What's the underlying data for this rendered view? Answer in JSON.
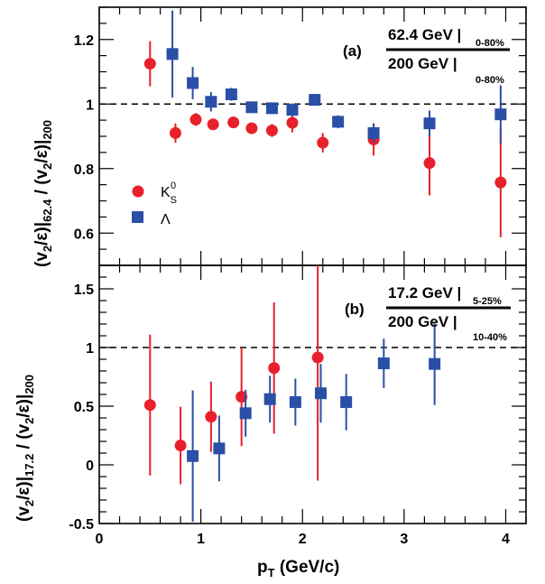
{
  "chart_data": [
    {
      "type": "scatter",
      "panel_label": "(a)",
      "ratio_numerator": "62.4 GeV |",
      "numerator_subscript": "0-80%",
      "ratio_denominator": "200 GeV |",
      "denominator_subscript": "0-80%",
      "ylabel": "(v2/ε)|62.4 / (v2/ε)|200",
      "ylim": [
        0.5,
        1.3
      ],
      "yticks": [
        "0.6",
        "0.8",
        "1",
        "1.2"
      ],
      "reference_line": 1,
      "legend_position": "middle-left",
      "series": [
        {
          "name": "K_S^0",
          "color": "#e8202a",
          "marker": "circle",
          "x": [
            0.5,
            0.75,
            0.95,
            1.12,
            1.32,
            1.5,
            1.7,
            1.9,
            2.2,
            2.7,
            3.25,
            3.95
          ],
          "y": [
            1.125,
            0.91,
            0.952,
            0.937,
            0.943,
            0.925,
            0.918,
            0.942,
            0.88,
            0.89,
            0.817,
            0.757
          ],
          "err": [
            0.07,
            0.03,
            0.02,
            0.015,
            0.015,
            0.015,
            0.02,
            0.03,
            0.03,
            0.05,
            0.1,
            0.17
          ]
        },
        {
          "name": "Λ",
          "color": "#2a4fa6",
          "marker": "square",
          "x": [
            0.72,
            0.92,
            1.1,
            1.3,
            1.5,
            1.7,
            1.9,
            2.12,
            2.35,
            2.7,
            3.25,
            3.95
          ],
          "y": [
            1.155,
            1.065,
            1.007,
            1.03,
            0.99,
            0.987,
            0.982,
            1.013,
            0.945,
            0.91,
            0.94,
            0.968
          ],
          "err": [
            0.135,
            0.05,
            0.03,
            0.02,
            0.015,
            0.015,
            0.02,
            0.015,
            0.02,
            0.03,
            0.04,
            0.09
          ]
        }
      ]
    },
    {
      "type": "scatter",
      "panel_label": "(b)",
      "ratio_numerator": "17.2 GeV |",
      "numerator_subscript": "5-25%",
      "ratio_denominator": "200 GeV |",
      "denominator_subscript": "10-40%",
      "ylabel": "(v2/ε)|17.2 / (v2/ε)|200",
      "xlabel": "pT (GeV/c)",
      "xlim": [
        0,
        4.2
      ],
      "xticks": [
        "0",
        "1",
        "2",
        "3",
        "4"
      ],
      "ylim": [
        -0.5,
        1.7
      ],
      "yticks": [
        "-0.5",
        "0",
        "0.5",
        "1",
        "1.5"
      ],
      "reference_line": 1,
      "series": [
        {
          "color": "#e8202a",
          "marker": "circle",
          "x": [
            0.5,
            0.8,
            1.1,
            1.4,
            1.72,
            2.15
          ],
          "y": [
            0.51,
            0.165,
            0.41,
            0.58,
            0.825,
            0.915
          ],
          "err": [
            0.6,
            0.33,
            0.3,
            0.42,
            0.56,
            1.05
          ]
        },
        {
          "color": "#2a4fa6",
          "marker": "square",
          "x": [
            0.92,
            1.18,
            1.44,
            1.68,
            1.93,
            2.18,
            2.43,
            2.8,
            3.3
          ],
          "y": [
            0.075,
            0.14,
            0.44,
            0.56,
            0.535,
            0.61,
            0.535,
            0.865,
            0.86
          ],
          "err": [
            0.56,
            0.28,
            0.2,
            0.2,
            0.2,
            0.25,
            0.24,
            0.21,
            0.35
          ]
        }
      ]
    }
  ]
}
